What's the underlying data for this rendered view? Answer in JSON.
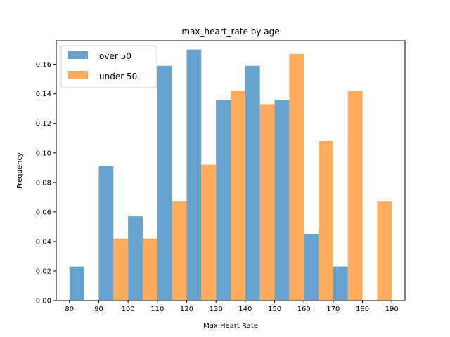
{
  "chart_data": {
    "type": "bar",
    "title": "max_heart_rate by age",
    "xlabel": "Max Heart Rate",
    "ylabel": "Frequency",
    "xlim": [
      75.5,
      194.5
    ],
    "ylim": [
      0,
      0.176
    ],
    "bin_edges": [
      80,
      90,
      100,
      110,
      120,
      130,
      140,
      150,
      160,
      170,
      180,
      190
    ],
    "x_ticks": [
      80,
      90,
      100,
      110,
      120,
      130,
      140,
      150,
      160,
      170,
      180,
      190
    ],
    "y_ticks": [
      0.0,
      0.02,
      0.04,
      0.06,
      0.08,
      0.1,
      0.12,
      0.14,
      0.16
    ],
    "y_tick_labels": [
      "0.00",
      "0.02",
      "0.04",
      "0.06",
      "0.08",
      "0.10",
      "0.12",
      "0.14",
      "0.16"
    ],
    "legend_position": "upper-left",
    "series": [
      {
        "name": "over 50",
        "color": "#5b9bcb",
        "values": [
          0.023,
          0.091,
          0.057,
          0.159,
          0.17,
          0.136,
          0.159,
          0.136,
          0.045,
          0.023,
          0.0
        ]
      },
      {
        "name": "under 50",
        "color": "#ffa44f",
        "values": [
          0.0,
          0.042,
          0.042,
          0.067,
          0.092,
          0.142,
          0.133,
          0.167,
          0.108,
          0.142,
          0.067
        ]
      }
    ]
  }
}
